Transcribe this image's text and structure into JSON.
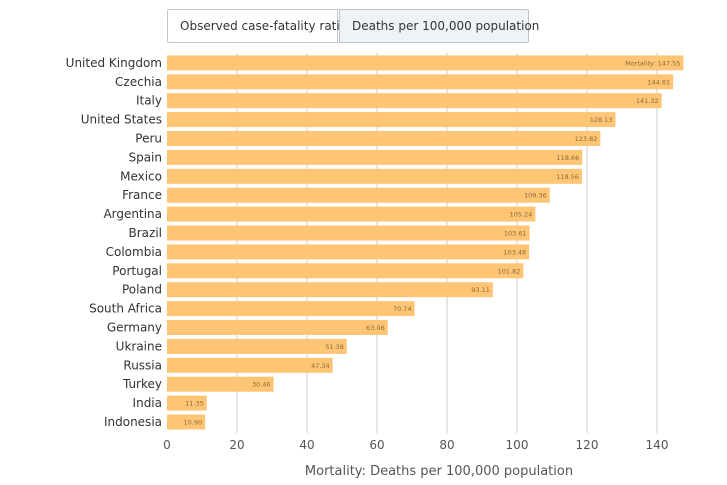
{
  "tabs": [
    {
      "label": "Observed case-fatality ratio",
      "selected": false
    },
    {
      "label": "Deaths per 100,000 population",
      "selected": true
    }
  ],
  "colors": {
    "bar": "#fec574",
    "grid": "#cccccc",
    "label": "#333333",
    "value_label": "#8a6a3a"
  },
  "chart_data": {
    "type": "bar",
    "orientation": "horizontal",
    "title": "",
    "xlabel": "Mortality: Deaths per 100,000 population",
    "ylabel": "",
    "xlim": [
      0,
      150
    ],
    "x_ticks": [
      0,
      20,
      40,
      60,
      80,
      100,
      120,
      140
    ],
    "grid": true,
    "categories": [
      "United Kingdom",
      "Czechia",
      "Italy",
      "United States",
      "Peru",
      "Spain",
      "Mexico",
      "France",
      "Argentina",
      "Brazil",
      "Colombia",
      "Portugal",
      "Poland",
      "South Africa",
      "Germany",
      "Ukraine",
      "Russia",
      "Turkey",
      "India",
      "Indonesia"
    ],
    "values": [
      147.55,
      144.61,
      141.32,
      128.13,
      123.82,
      118.66,
      118.56,
      109.36,
      105.24,
      103.61,
      103.48,
      101.82,
      93.11,
      70.74,
      63.06,
      51.38,
      47.34,
      30.46,
      11.35,
      10.9
    ],
    "value_labels": [
      "Mortality: 147.55",
      "144.61",
      "141.32",
      "128.13",
      "123.82",
      "118.66",
      "118.56",
      "109.36",
      "105.24",
      "103.61",
      "103.48",
      "101.82",
      "93.11",
      "70.74",
      "63.06",
      "51.38",
      "47.34",
      "30.46",
      "11.35",
      "10.90"
    ]
  }
}
